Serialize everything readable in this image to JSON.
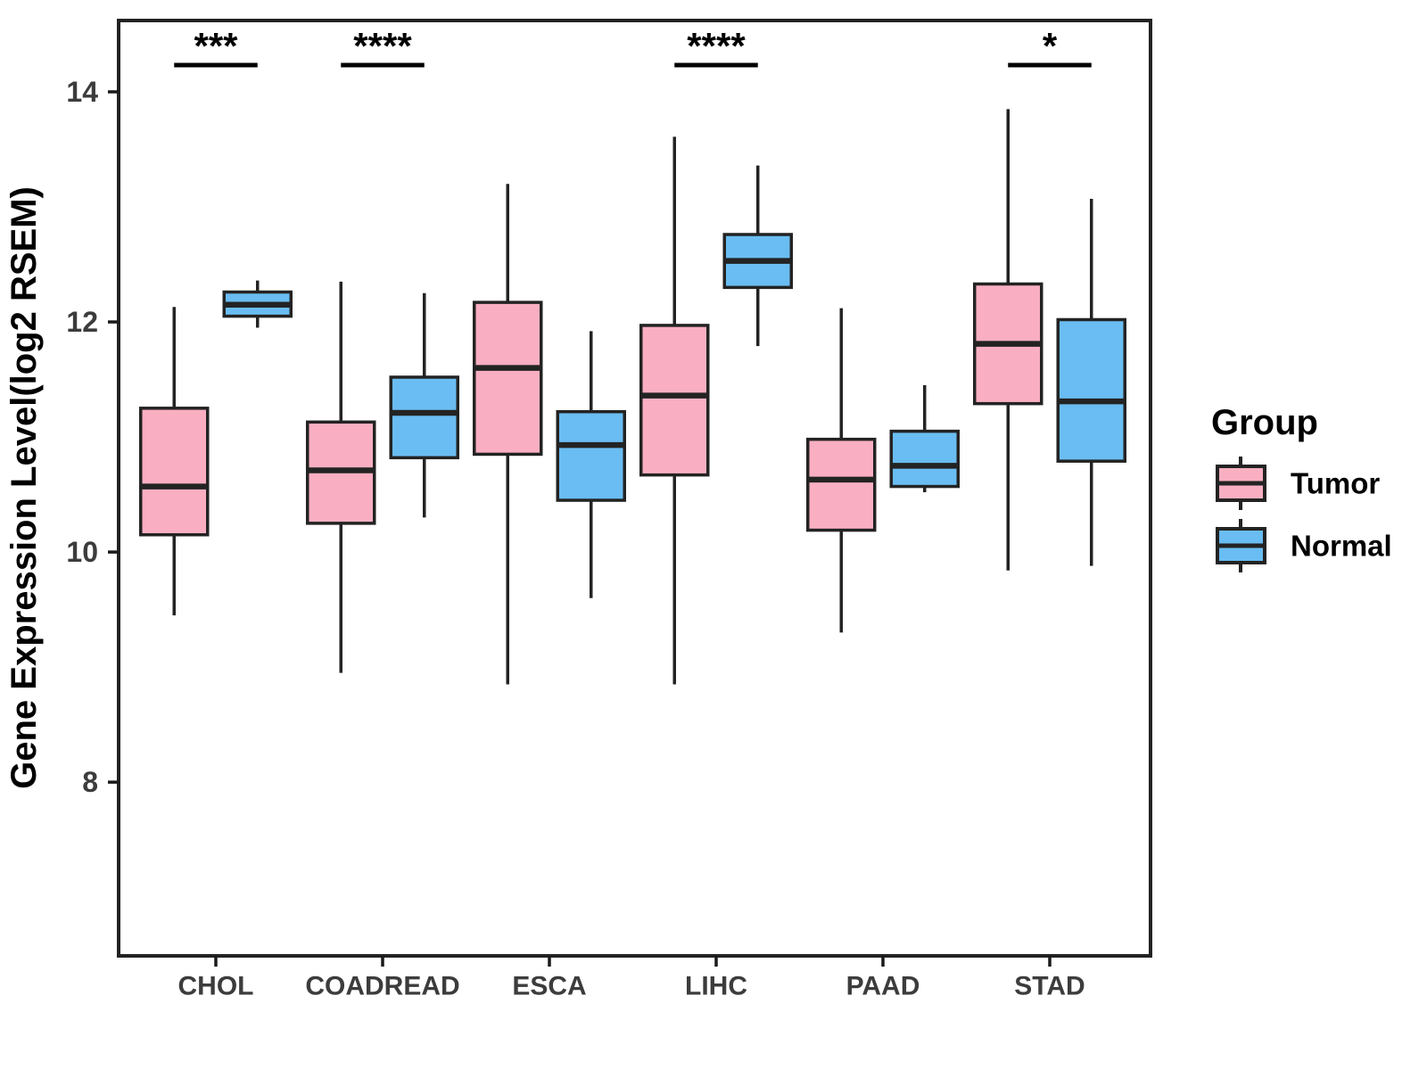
{
  "chart_data": {
    "type": "boxplot",
    "title": "",
    "xlabel": "",
    "ylabel": "Gene Expression Level(log2 RSEM)",
    "y_ticks": [
      8,
      10,
      12,
      14
    ],
    "y_range": [
      6.49,
      14.62
    ],
    "grid": false,
    "categories": [
      "CHOL",
      "COADREAD",
      "ESCA",
      "LIHC",
      "PAAD",
      "STAD"
    ],
    "groups": [
      {
        "name": "Tumor",
        "color": "#F9AFC1"
      },
      {
        "name": "Normal",
        "color": "#6ABDF2"
      }
    ],
    "series": [
      {
        "name": "Tumor",
        "boxes": [
          {
            "category": "CHOL",
            "whisker_low": 9.45,
            "q1": 10.15,
            "median": 10.57,
            "q3": 11.25,
            "whisker_high": 12.13
          },
          {
            "category": "COADREAD",
            "whisker_low": 8.95,
            "q1": 10.25,
            "median": 10.71,
            "q3": 11.13,
            "whisker_high": 12.35
          },
          {
            "category": "ESCA",
            "whisker_low": 8.85,
            "q1": 10.85,
            "median": 11.6,
            "q3": 12.17,
            "whisker_high": 13.2
          },
          {
            "category": "LIHC",
            "whisker_low": 8.85,
            "q1": 10.67,
            "median": 11.36,
            "q3": 11.97,
            "whisker_high": 13.61
          },
          {
            "category": "PAAD",
            "whisker_low": 9.3,
            "q1": 10.19,
            "median": 10.63,
            "q3": 10.98,
            "whisker_high": 12.12
          },
          {
            "category": "STAD",
            "whisker_low": 9.84,
            "q1": 11.29,
            "median": 11.81,
            "q3": 12.33,
            "whisker_high": 13.85
          }
        ]
      },
      {
        "name": "Normal",
        "boxes": [
          {
            "category": "CHOL",
            "whisker_low": 11.95,
            "q1": 12.05,
            "median": 12.15,
            "q3": 12.26,
            "whisker_high": 12.36
          },
          {
            "category": "COADREAD",
            "whisker_low": 10.3,
            "q1": 10.82,
            "median": 11.21,
            "q3": 11.52,
            "whisker_high": 12.25
          },
          {
            "category": "ESCA",
            "whisker_low": 9.6,
            "q1": 10.45,
            "median": 10.93,
            "q3": 11.22,
            "whisker_high": 11.92
          },
          {
            "category": "LIHC",
            "whisker_low": 11.79,
            "q1": 12.3,
            "median": 12.53,
            "q3": 12.76,
            "whisker_high": 13.36
          },
          {
            "category": "PAAD",
            "whisker_low": 10.52,
            "q1": 10.57,
            "median": 10.75,
            "q3": 11.05,
            "whisker_high": 11.45
          },
          {
            "category": "STAD",
            "whisker_low": 9.88,
            "q1": 10.79,
            "median": 11.31,
            "q3": 12.02,
            "whisker_high": 13.07
          }
        ]
      }
    ],
    "significance": [
      {
        "category": "CHOL",
        "label": "***"
      },
      {
        "category": "COADREAD",
        "label": "****"
      },
      {
        "category": "LIHC",
        "label": "****"
      },
      {
        "category": "STAD",
        "label": "*"
      }
    ],
    "legend": {
      "title": "Group",
      "position": "right"
    }
  },
  "style_colors": {
    "box_border": "#232323",
    "axis_line": "#1a1a1a",
    "tick_text": "#3C3C3C",
    "title_text": "#000000"
  }
}
